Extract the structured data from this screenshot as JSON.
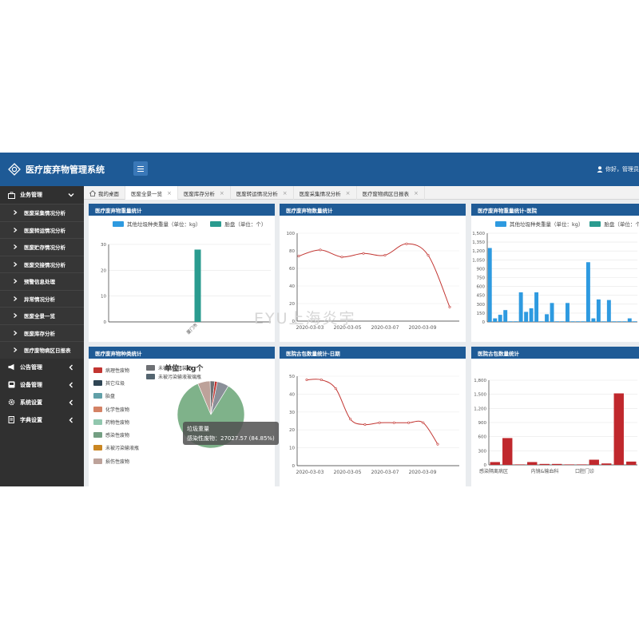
{
  "header": {
    "title": "医疗废弃物管理系统",
    "user_text": "你好，管理员"
  },
  "sidebar": {
    "groups": [
      {
        "label": "业务管理",
        "icon": "briefcase-icon",
        "expanded": true
      },
      {
        "label": "公告管理",
        "icon": "megaphone-icon",
        "expanded": false
      },
      {
        "label": "设备管理",
        "icon": "device-icon",
        "expanded": false
      },
      {
        "label": "系统设置",
        "icon": "gear-icon",
        "expanded": false
      },
      {
        "label": "字典设置",
        "icon": "dictionary-icon",
        "expanded": false
      }
    ],
    "items": [
      {
        "label": "医废采集情况分析"
      },
      {
        "label": "医废转运情况分析"
      },
      {
        "label": "医废贮存情况分析"
      },
      {
        "label": "医废交接情况分析"
      },
      {
        "label": "预警信息处理"
      },
      {
        "label": "异常情况分析"
      },
      {
        "label": "医废全景一览"
      },
      {
        "label": "医废库存分析"
      },
      {
        "label": "医疗废物病区日报表"
      }
    ]
  },
  "tabs": [
    {
      "label": "我的桌面",
      "closable": false,
      "active": false
    },
    {
      "label": "医废全景一览",
      "closable": true,
      "active": true
    },
    {
      "label": "医废库存分析",
      "closable": true,
      "active": false
    },
    {
      "label": "医废转运情况分析",
      "closable": true,
      "active": false
    },
    {
      "label": "医废采集情况分析",
      "closable": true,
      "active": false
    },
    {
      "label": "医疗废物病区日报表",
      "closable": true,
      "active": false
    }
  ],
  "panels": {
    "p1": {
      "title": "医疗废弃物重量统计"
    },
    "p2": {
      "title": "医疗废弃物数量统计"
    },
    "p3": {
      "title": "医疗废弃物重量统计-医院"
    },
    "p4": {
      "title": "医疗废弃物种类统计"
    },
    "p5": {
      "title": "医院古包数量统计-日期"
    },
    "p6": {
      "title": "医院古包数量统计"
    }
  },
  "watermark": "EYU上海炎宇",
  "pie_unit": "单位：kg个",
  "tooltip": {
    "title": "垃圾重量",
    "body": "感染性废物：27027.57 (84.85%)"
  },
  "colors": {
    "header": "#1e5a96",
    "sidebar": "#303030",
    "bar_blue": "#2e9ae0",
    "bar_teal": "#2a9b8f",
    "line_red": "#c23531",
    "bar_red": "#c0282d"
  },
  "chart_data": [
    {
      "type": "bar",
      "title": "医疗废弃物重量统计",
      "legend": [
        "其他垃圾种类重量（单位：kg）",
        "胎盘（单位：个）"
      ],
      "categories": [
        "厦门市"
      ],
      "series": [
        {
          "name": "其他垃圾种类重量（单位：kg）",
          "values": [
            0
          ]
        },
        {
          "name": "胎盘（单位：个）",
          "values": [
            28
          ]
        }
      ],
      "ylim": [
        0,
        30
      ],
      "yticks": [
        "0",
        "10",
        "20",
        "30"
      ],
      "grid": true
    },
    {
      "type": "line",
      "title": "医疗废弃物数量统计",
      "x_ticks": [
        "2020-03-03",
        "2020-03-05",
        "2020-03-07",
        "2020-03-09"
      ],
      "ylim": [
        0,
        100
      ],
      "yticks": [
        "0",
        "20",
        "40",
        "60",
        "80",
        "100"
      ],
      "series": [
        {
          "values": [
            74,
            81,
            73,
            77,
            75,
            88,
            75,
            16
          ]
        }
      ]
    },
    {
      "type": "bar",
      "title": "医疗废弃物重量统计-医院",
      "legend": [
        "其他垃圾种类重量（单位：kg）",
        "胎盘（单位：个）"
      ],
      "ylim": [
        0,
        1500
      ],
      "yticks": [
        "0",
        "150",
        "300",
        "450",
        "600",
        "750",
        "900",
        "1,050",
        "1,200",
        "1,350",
        "1,500"
      ],
      "series": [
        {
          "name": "其他垃圾种类重量（单位：kg）",
          "values": [
            1250,
            60,
            120,
            200,
            10,
            10,
            500,
            170,
            230,
            500,
            10,
            130,
            320,
            10,
            10,
            320,
            10,
            10,
            10,
            1010,
            60,
            380,
            10,
            370,
            10,
            10,
            10,
            60,
            10
          ]
        }
      ]
    },
    {
      "type": "pie",
      "title": "医疗废弃物种类统计",
      "legend": [
        "病理性废物",
        "其它垃圾",
        "胎盘",
        "化学性废物",
        "药物性废物",
        "感染性废物",
        "未被污染输液瓶",
        "损伤性废物",
        "未被污染包装物",
        "未被污染输液玻璃瓶"
      ],
      "slices": [
        {
          "name": "感染性废物",
          "value": 27027.57,
          "percent": 84.85
        },
        {
          "name": "损伤性废物",
          "value": 1900
        },
        {
          "name": "其它垃圾",
          "value": 700
        },
        {
          "name": "病理性废物",
          "value": 400
        },
        {
          "name": "未被污染包装物",
          "value": 1800
        }
      ]
    },
    {
      "type": "line",
      "title": "医院古包数量统计-日期",
      "x_ticks": [
        "2020-03-03",
        "2020-03-05",
        "2020-03-07",
        "2020-03-09"
      ],
      "ylim": [
        0,
        50
      ],
      "yticks": [
        "0",
        "10",
        "20",
        "30",
        "40",
        "50"
      ],
      "series": [
        {
          "values": [
            48,
            48,
            43,
            26,
            23,
            24,
            24,
            24,
            24,
            12
          ]
        }
      ]
    },
    {
      "type": "bar",
      "title": "医院古包数量统计",
      "ylim": [
        0,
        1800
      ],
      "yticks": [
        "0",
        "300",
        "600",
        "900",
        "1,200",
        "1,500",
        "1,800"
      ],
      "x_ticks": [
        "感染隔离病区",
        "内镜&输血科",
        "口腔门诊"
      ],
      "series": [
        {
          "values": [
            60,
            570,
            10,
            60,
            20,
            20,
            10,
            10,
            110,
            30,
            1520,
            70
          ]
        }
      ]
    }
  ]
}
